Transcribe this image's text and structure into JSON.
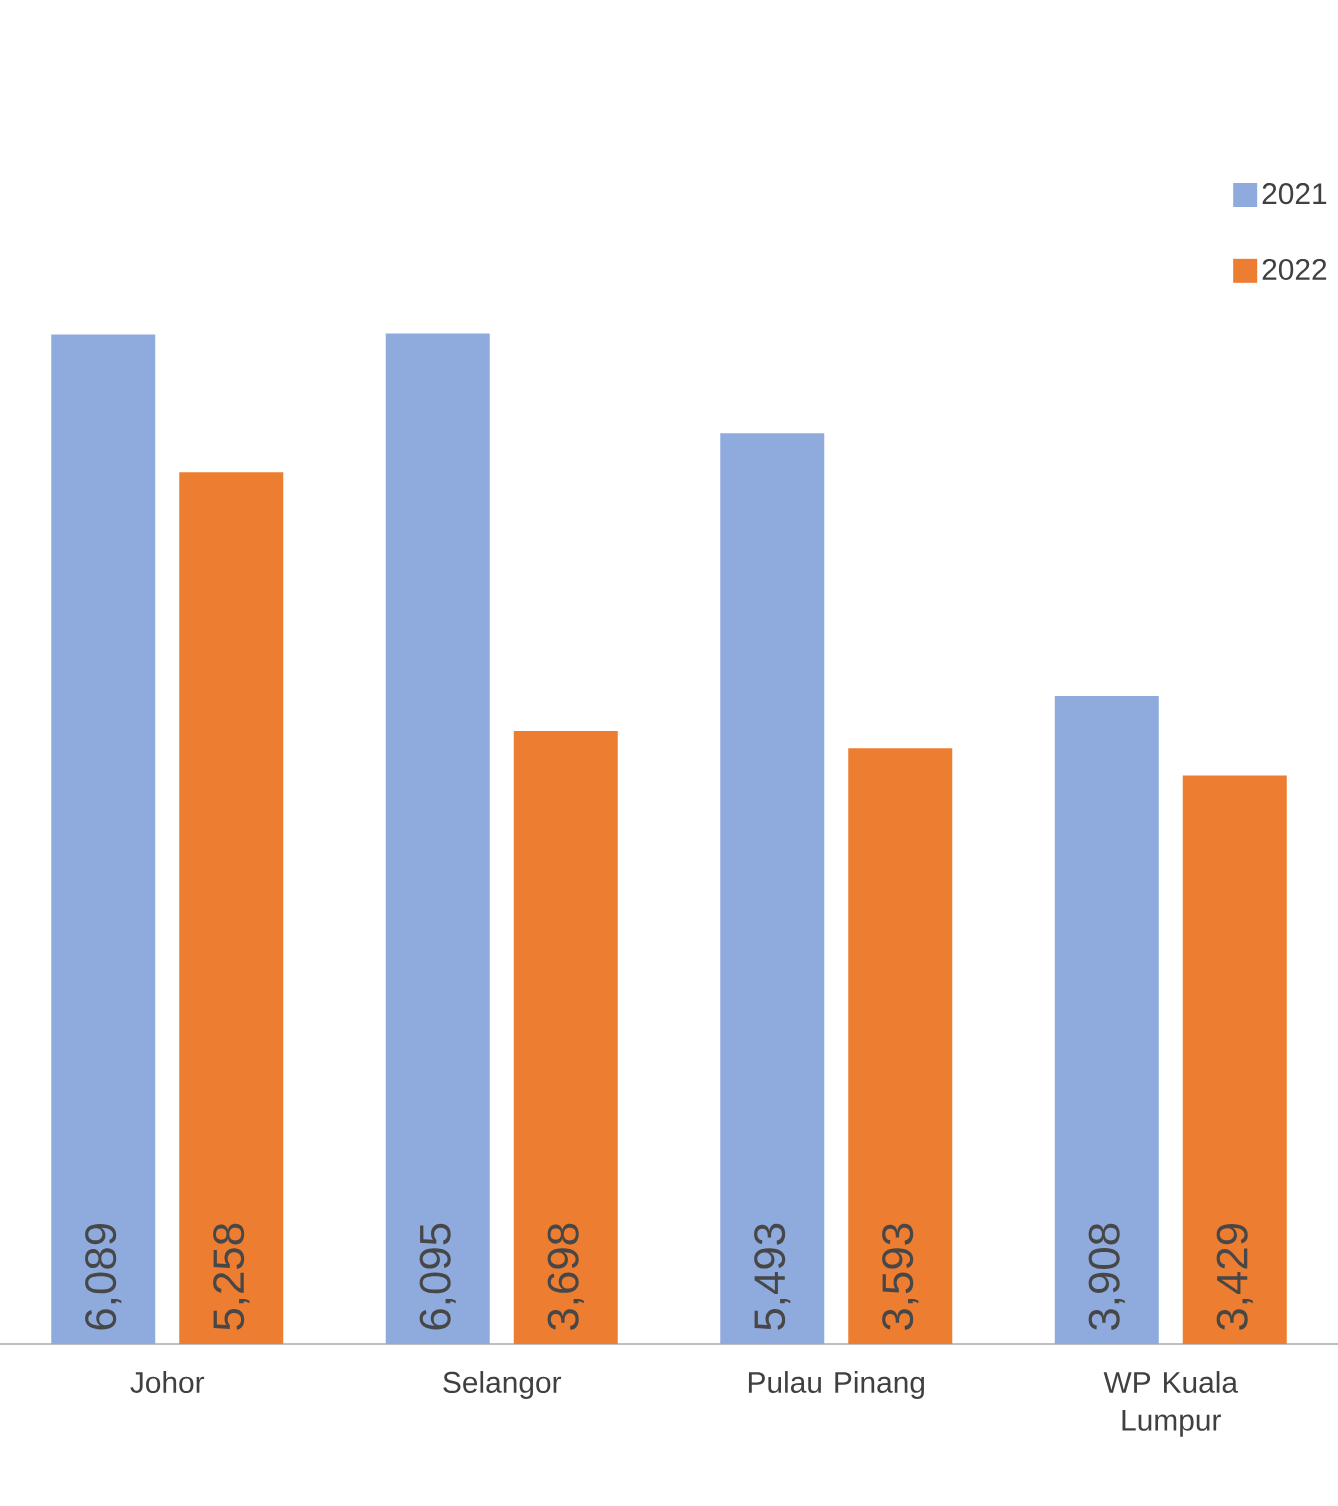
{
  "chart_data": {
    "type": "bar",
    "categories": [
      "Johor",
      "Selangor",
      "Pulau Pinang",
      "WP Kuala Lumpur"
    ],
    "series": [
      {
        "name": "2021",
        "color": "#8faadc",
        "values": [
          6089,
          6095,
          5493,
          3908
        ],
        "value_labels": [
          "6,089",
          "6,095",
          "5,493",
          "3,908"
        ]
      },
      {
        "name": "2022",
        "color": "#ed7d31",
        "values": [
          5258,
          3698,
          3593,
          3429
        ],
        "value_labels": [
          "5,258",
          "3,698",
          "3,593",
          "3,429"
        ]
      }
    ],
    "legend": "top right",
    "grid": false
  }
}
